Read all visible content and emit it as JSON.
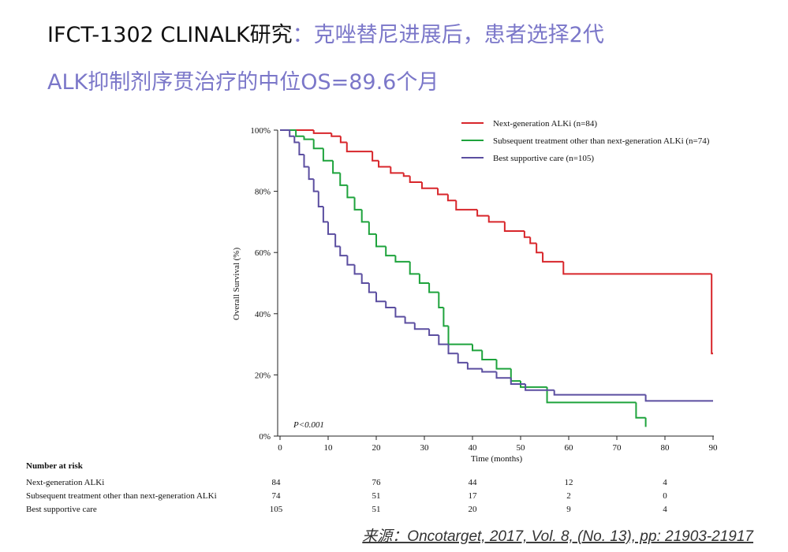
{
  "slide": {
    "title_line1": [
      {
        "text": "IFCT-1302 CLINALK研究",
        "color": "#111111"
      },
      {
        "text": "：克唑替尼进展后，患者选择2代",
        "color": "#7b77c9"
      }
    ],
    "title_line2": [
      {
        "text": "ALK抑制剂序贯治疗的中位OS=89.6个月",
        "color": "#7b77c9"
      }
    ],
    "source": "来源：Oncotarget, 2017, Vol. 8, (No. 13), pp: 21903-21917"
  },
  "chart_data": {
    "type": "step",
    "x_label": "Time (months)",
    "y_label": "Overall Survival (%)",
    "annotation": "P<0.001",
    "xlim": [
      0,
      90
    ],
    "xticks": [
      0,
      10,
      20,
      30,
      40,
      50,
      60,
      70,
      80,
      90
    ],
    "ylim": [
      0,
      100
    ],
    "yticks": [
      {
        "value": 0,
        "label": "0%"
      },
      {
        "value": 20,
        "label": "20%"
      },
      {
        "value": 40,
        "label": "40%"
      },
      {
        "value": 60,
        "label": "60%"
      },
      {
        "value": 80,
        "label": "80%"
      },
      {
        "value": 100,
        "label": "100%"
      }
    ],
    "legend": "top-right",
    "series": [
      {
        "name": "Next-generation ALKi (n=84)",
        "color": "#d8262b",
        "x": [
          0,
          7,
          10.7,
          12.6,
          13.9,
          19.2,
          20.5,
          23,
          25.7,
          27,
          29.5,
          32.8,
          34.9,
          36.6,
          41,
          43.4,
          46.7,
          50.8,
          52,
          53.3,
          54.6,
          58.9,
          89.7,
          90
        ],
        "values": [
          100,
          99,
          98,
          96,
          93,
          90,
          88,
          86,
          85,
          83,
          81,
          79,
          77,
          74,
          72,
          70,
          67,
          65,
          63,
          60,
          57,
          53,
          27,
          27
        ]
      },
      {
        "name": "Subsequent treatment other than next-generation ALKi (n=74)",
        "color": "#1ea33c",
        "x": [
          0,
          3.3,
          5,
          7,
          9,
          11,
          12.5,
          14,
          15.5,
          17,
          18.5,
          20,
          22,
          24,
          27,
          29,
          31,
          33,
          34,
          35,
          40,
          42,
          45,
          48,
          50,
          55.5,
          74,
          76
        ],
        "values": [
          100,
          98,
          97,
          94,
          90,
          86,
          82,
          78,
          74,
          70,
          66,
          62,
          59,
          57,
          53,
          50,
          47,
          42,
          36,
          30,
          28,
          25,
          22,
          18,
          16,
          11,
          6,
          3
        ]
      },
      {
        "name": "Best supportive care (n=105)",
        "color": "#5b4ea0",
        "x": [
          0,
          2,
          3,
          4,
          5,
          6,
          7,
          8,
          9,
          10,
          11.5,
          12.5,
          14,
          15.5,
          17,
          18.5,
          20,
          22,
          24,
          26,
          28,
          31,
          33,
          35,
          37,
          39,
          42,
          45,
          48,
          51,
          57,
          75,
          76,
          90
        ],
        "values": [
          100,
          98,
          96,
          92,
          88,
          84,
          80,
          75,
          70,
          66,
          62,
          59,
          56,
          53,
          50,
          47,
          44,
          42,
          39,
          37,
          35,
          33,
          30,
          27,
          24,
          22,
          21,
          19,
          17,
          15,
          13.5,
          13.5,
          11.5,
          11.5
        ]
      }
    ]
  },
  "risk_table": {
    "title": "Number at risk",
    "rows": [
      {
        "label": "Next-generation ALKi",
        "counts": [
          "84",
          "76",
          "44",
          "12",
          "4"
        ]
      },
      {
        "label": "Subsequent treatment other than next-generation ALKi",
        "counts": [
          "74",
          "51",
          "17",
          "2",
          "0"
        ]
      },
      {
        "label": "Best supportive care",
        "counts": [
          "105",
          "51",
          "20",
          "9",
          "4"
        ]
      }
    ]
  }
}
